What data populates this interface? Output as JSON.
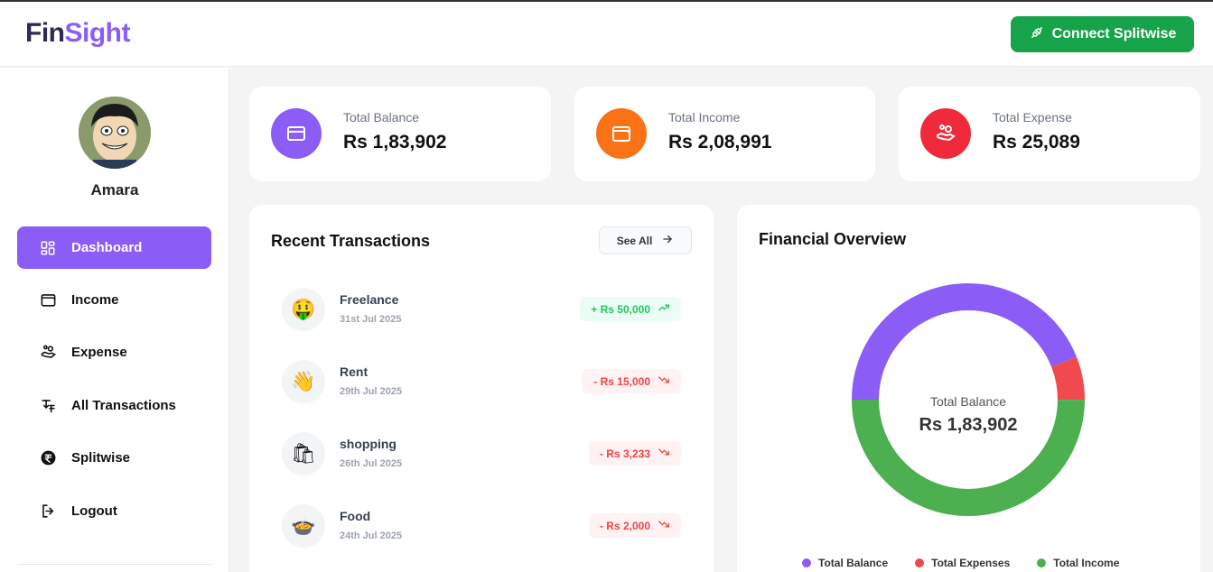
{
  "brand": {
    "part1": "Fin",
    "part2": "Sight"
  },
  "header": {
    "connect_label": "Connect Splitwise"
  },
  "user": {
    "name": "Amara"
  },
  "nav": [
    {
      "label": "Dashboard",
      "icon": "dashboard-icon",
      "active": true
    },
    {
      "label": "Income",
      "icon": "wallet-icon"
    },
    {
      "label": "Expense",
      "icon": "hand-coins-icon"
    },
    {
      "label": "All Transactions",
      "icon": "transactions-icon"
    },
    {
      "label": "Splitwise",
      "icon": "rupee-icon"
    },
    {
      "label": "Logout",
      "icon": "logout-icon"
    }
  ],
  "stats": [
    {
      "label": "Total Balance",
      "value": "Rs 1,83,902",
      "color": "#8b5cf6",
      "icon": "card-icon"
    },
    {
      "label": "Total Income",
      "value": "Rs 2,08,991",
      "color": "#f97316",
      "icon": "wallet-icon"
    },
    {
      "label": "Total Expense",
      "value": "Rs 25,089",
      "color": "#ef2b3b",
      "icon": "hand-coins-icon"
    }
  ],
  "recent": {
    "title": "Recent Transactions",
    "see_all": "See All",
    "items": [
      {
        "emoji": "🤑",
        "name": "Freelance",
        "date": "31st Jul 2025",
        "amount": "+ Rs 50,000",
        "type": "income"
      },
      {
        "emoji": "👋",
        "name": "Rent",
        "date": "29th Jul 2025",
        "amount": "- Rs 15,000",
        "type": "expense"
      },
      {
        "emoji": "🛍",
        "name": "shopping",
        "date": "26th Jul 2025",
        "amount": "- Rs 3,233",
        "type": "expense"
      },
      {
        "emoji": "🍲",
        "name": "Food",
        "date": "24th Jul 2025",
        "amount": "- Rs 2,000",
        "type": "expense"
      }
    ]
  },
  "overview": {
    "title": "Financial Overview",
    "center_label": "Total Balance",
    "center_value": "Rs 1,83,902"
  },
  "chart_data": {
    "type": "pie",
    "categories": [
      "Total Balance",
      "Total Expenses",
      "Total Income"
    ],
    "values": [
      183902,
      25089,
      208991
    ],
    "colors": [
      "#8b5cf6",
      "#f04a4f",
      "#4caf50"
    ],
    "legend": "bottom"
  }
}
